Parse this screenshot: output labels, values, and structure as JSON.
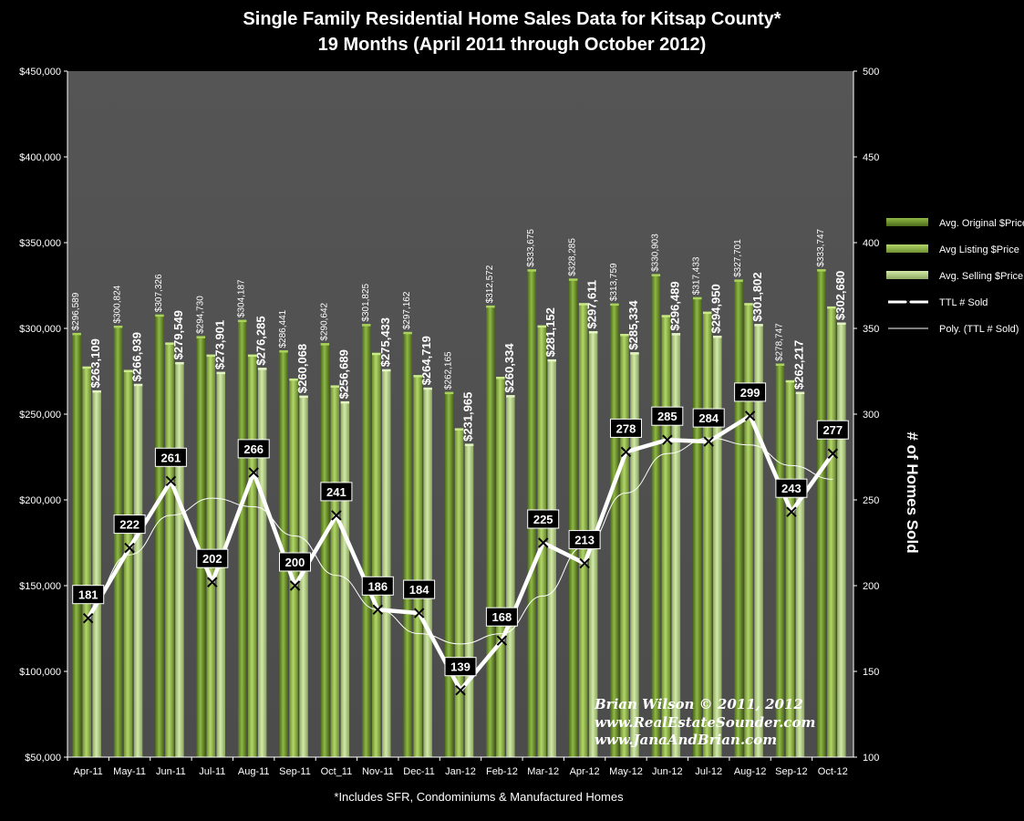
{
  "title_line1": "Single Family Residential Home Sales Data for Kitsap County*",
  "title_line2": "19 Months (April  2011 through October 2012)",
  "footnote": "*Includes SFR, Condominiums & Manufactured Homes",
  "credit": {
    "line1": "Brian Wilson © 2011, 2012",
    "line2": "www.RealEstateSounder.com",
    "line3": "www.JanaAndBrian.com"
  },
  "colors": {
    "background": "#000000",
    "plot_background": "#555555",
    "original": "#7fa83a",
    "listing": "#a6cc5e",
    "selling": "#c8e39a",
    "sold_line": "#ffffff",
    "poly_line": "#ffffff"
  },
  "chart_data": {
    "type": "bar",
    "title": "Single Family Residential Home Sales Data for Kitsap County*",
    "subtitle": "19 Months (April  2011 through October 2012)",
    "categories": [
      "Apr-11",
      "May-11",
      "Jun-11",
      "Jul-11",
      "Aug-11",
      "Sep-11",
      "Oct_11",
      "Nov-11",
      "Dec-11",
      "Jan-12",
      "Feb-12",
      "Mar-12",
      "Apr-12",
      "May-12",
      "Jun-12",
      "Jul-12",
      "Aug-12",
      "Sep-12",
      "Oct-12"
    ],
    "y_left": {
      "min": 50000,
      "max": 450000,
      "step": 50000,
      "tick_labels": [
        "$50,000",
        "$100,000",
        "$150,000",
        "$200,000",
        "$250,000",
        "$300,000",
        "$350,000",
        "$400,000",
        "$450,000"
      ]
    },
    "y_right": {
      "min": 100,
      "max": 500,
      "step": 50,
      "label": "# of Homes Sold",
      "tick_labels": [
        "100",
        "150",
        "200",
        "250",
        "300",
        "350",
        "400",
        "450",
        "500"
      ]
    },
    "grid": false,
    "legend_position": "right",
    "series": [
      {
        "name": "Avg. Original $Price",
        "kind": "bar",
        "axis": "left",
        "values": [
          296589,
          300824,
          307326,
          294730,
          304187,
          286441,
          290642,
          301825,
          297162,
          262165,
          312572,
          333675,
          328285,
          313759,
          330903,
          317433,
          327701,
          278747,
          333747
        ],
        "labels": [
          "$296,589",
          "$300,824",
          "$307,326",
          "$294,730",
          "$304,187",
          "$286,441",
          "$290,642",
          "$301,825",
          "$297,162",
          "$262,165",
          "$312,572",
          "$333,675",
          "$328,285",
          "$313,759",
          "$330,903",
          "$317,433",
          "$327,701",
          "$278,747",
          "$333,747"
        ]
      },
      {
        "name": "Avg Listing $Price",
        "kind": "bar",
        "axis": "left",
        "values": [
          277000,
          275000,
          291000,
          284000,
          284000,
          270000,
          266000,
          285000,
          272000,
          241000,
          271000,
          301000,
          314000,
          296000,
          307000,
          309000,
          314000,
          269000,
          312000
        ]
      },
      {
        "name": "Avg. Selling $Price",
        "kind": "bar",
        "axis": "left",
        "values": [
          263109,
          266939,
          279549,
          273901,
          276285,
          260068,
          256689,
          275433,
          264719,
          231965,
          260334,
          281152,
          297611,
          285334,
          296489,
          294950,
          301802,
          262217,
          302680
        ],
        "labels": [
          "$263,109",
          "$266,939",
          "$279,549",
          "$273,901",
          "$276,285",
          "$260,068",
          "$256,689",
          "$275,433",
          "$264,719",
          "$231,965",
          "$260,334",
          "$281,152",
          "$297,611",
          "$285,334",
          "$296,489",
          "$294,950",
          "$301,802",
          "$262,217",
          "$302,680"
        ]
      },
      {
        "name": "TTL # Sold",
        "kind": "line",
        "axis": "right",
        "values": [
          181,
          222,
          261,
          202,
          266,
          200,
          241,
          186,
          184,
          139,
          168,
          225,
          213,
          278,
          285,
          284,
          299,
          243,
          277
        ],
        "labels": [
          "181",
          "222",
          "261",
          "202",
          "266",
          "200",
          "241",
          "186",
          "184",
          "139",
          "168",
          "225",
          "213",
          "278",
          "285",
          "284",
          "299",
          "243",
          "277"
        ]
      },
      {
        "name": "Poly. (TTL # Sold)",
        "kind": "trendline",
        "axis": "right",
        "values": [
          190,
          218,
          241,
          251,
          246,
          229,
          206,
          186,
          172,
          166,
          172,
          194,
          223,
          254,
          277,
          286,
          282,
          270,
          262
        ]
      }
    ]
  }
}
